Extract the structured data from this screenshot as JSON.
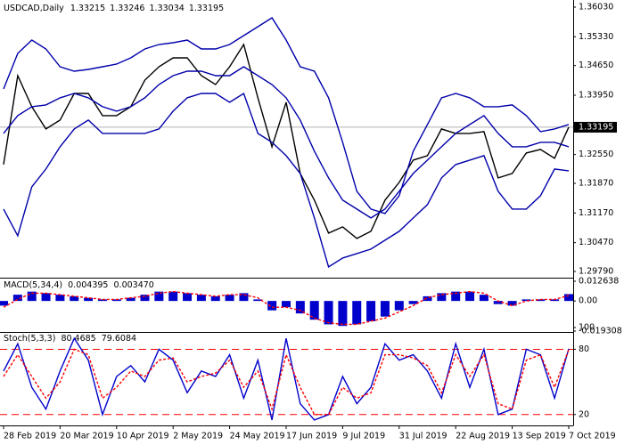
{
  "chart_data": [
    {
      "type": "line",
      "title": "USDCAD,Daily",
      "ohlc": [
        1.33215,
        1.33246,
        1.33034,
        1.33195
      ],
      "current_price": 1.33195,
      "ylim": [
        1.29643,
        1.36198
      ],
      "yticks": [
        {
          "value": 1.3603,
          "label": "1.36030"
        },
        {
          "value": 1.3533,
          "label": "1.35330"
        },
        {
          "value": 1.3465,
          "label": "1.34650"
        },
        {
          "value": 1.3395,
          "label": "1.33950"
        },
        {
          "value": 1.3255,
          "label": "1.32550"
        },
        {
          "value": 1.3187,
          "label": "1.31870"
        },
        {
          "value": 1.3117,
          "label": "1.31170"
        },
        {
          "value": 1.3047,
          "label": "1.30470"
        },
        {
          "value": 1.2979,
          "label": "1.29790"
        }
      ],
      "series": [
        {
          "color": "#000000",
          "values": [
            1.32313,
            1.34413,
            1.33678,
            1.33153,
            1.33363,
            1.33993,
            1.33993,
            1.33468,
            1.33468,
            1.33678,
            1.34308,
            1.34623,
            1.34833,
            1.34833,
            1.34413,
            1.34203,
            1.34623,
            1.35148,
            1.33888,
            1.32733,
            1.33783,
            1.32103,
            1.31473,
            1.30696,
            1.30843,
            1.3057,
            1.30738,
            1.31473,
            1.31893,
            1.32418,
            1.32523,
            1.33153,
            1.33048,
            1.33048,
            1.3309,
            1.31998,
            1.32103,
            1.32586,
            1.3267,
            1.3246,
            1.33195
          ]
        },
        {
          "color": "#0000aa",
          "values": [
            1.34098,
            1.34938,
            1.35253,
            1.35043,
            1.34623,
            1.34518,
            1.3456,
            1.34623,
            1.34686,
            1.34833,
            1.35043,
            1.35148,
            1.3519,
            1.35253,
            1.35043,
            1.35043,
            1.35148,
            1.35358,
            1.35568,
            1.35778,
            1.35253,
            1.34623,
            1.34518,
            1.33888,
            1.32838,
            1.31683,
            1.31263,
            1.31158,
            1.31578,
            1.32628,
            1.33258,
            1.33888,
            1.33993,
            1.33888,
            1.33678,
            1.33678,
            1.3372,
            1.33468,
            1.3309,
            1.33153,
            1.33258
          ]
        },
        {
          "color": "#0000aa",
          "values": [
            1.33048,
            1.33468,
            1.33678,
            1.3372,
            1.33888,
            1.33993,
            1.33888,
            1.33678,
            1.33573,
            1.33678,
            1.33888,
            1.34203,
            1.34413,
            1.34518,
            1.34518,
            1.34413,
            1.34413,
            1.34623,
            1.34413,
            1.34203,
            1.33888,
            1.33363,
            1.32628,
            1.31998,
            1.31473,
            1.31263,
            1.31053,
            1.31263,
            1.31683,
            1.32103,
            1.32418,
            1.32733,
            1.33048,
            1.33258,
            1.33468,
            1.33048,
            1.32733,
            1.32733,
            1.32838,
            1.32838,
            1.32733
          ]
        },
        {
          "color": "#0000aa",
          "values": [
            1.31263,
            1.30633,
            1.31788,
            1.32208,
            1.32733,
            1.33153,
            1.33363,
            1.33048,
            1.33048,
            1.33048,
            1.33048,
            1.33153,
            1.33573,
            1.33888,
            1.33993,
            1.33993,
            1.33783,
            1.33993,
            1.33048,
            1.32838,
            1.32523,
            1.32103,
            1.31053,
            1.29898,
            1.30108,
            1.30213,
            1.30318,
            1.30528,
            1.30738,
            1.31053,
            1.31368,
            1.31998,
            1.32313,
            1.32418,
            1.32523,
            1.31683,
            1.31263,
            1.31263,
            1.31578,
            1.32208,
            1.32166
          ]
        }
      ]
    },
    {
      "type": "bar",
      "title": "MACD(5,34,4)",
      "readout": [
        0.004395,
        {
          "value": 0.00347,
          "label": "0.003470"
        }
      ],
      "ylim": [
        -0.019308,
        0.012638
      ],
      "yticks": [
        0.012638,
        {
          "value": 0,
          "label": "0.00"
        },
        -0.019308
      ],
      "series": [
        {
          "color": "#0000cc",
          "values": [
            -0.003,
            0.004,
            0.006,
            0.005,
            0.004,
            0.003,
            0.002,
            0.001,
            0.001,
            0.002,
            0.004,
            0.006,
            0.006,
            0.005,
            0.004,
            0.003,
            0.004,
            0.005,
            0.001,
            -0.006,
            -0.004,
            -0.008,
            -0.012,
            -0.015,
            -0.016,
            -0.015,
            -0.013,
            -0.01,
            -0.006,
            -0.002,
            0.003,
            0.005,
            0.006,
            0.006,
            0.004,
            -0.002,
            -0.003,
            0.001,
            0.001,
            0.001,
            0.004395
          ]
        },
        {
          "color": "#ff0000",
          "values": [
            -0.004,
            0.001,
            0.005,
            0.005,
            0.004,
            0.003,
            0.002,
            0.001,
            0.001,
            0.002,
            0.003,
            0.005,
            0.006,
            0.005,
            0.004,
            0.003,
            0.004,
            0.004,
            0.002,
            -0.004,
            -0.004,
            -0.006,
            -0.011,
            -0.014,
            -0.015,
            -0.015,
            -0.013,
            -0.011,
            -0.007,
            -0.003,
            0.002,
            0.004,
            0.005,
            0.006,
            0.005,
            0.0,
            -0.003,
            0.0,
            0.001,
            0.001,
            0.00347
          ]
        }
      ]
    },
    {
      "type": "line",
      "title": "Stoch(5,3,3)",
      "readout": [
        80.4685,
        79.6084
      ],
      "ylim": [
        10,
        100
      ],
      "yticks": [
        100,
        80,
        20
      ],
      "levels": [
        80,
        20
      ],
      "level_color": "#ff0000",
      "categories": [
        "28 Feb 2019",
        null,
        null,
        null,
        "20 Mar 2019",
        null,
        null,
        null,
        "10 Apr 2019",
        null,
        null,
        null,
        "2 May 2019",
        null,
        null,
        null,
        "24 May 2019",
        null,
        null,
        null,
        "17 Jun 2019",
        null,
        null,
        null,
        "9 Jul 2019",
        null,
        null,
        null,
        "31 Jul 2019",
        null,
        null,
        null,
        "22 Aug 2019",
        null,
        null,
        null,
        "13 Sep 2019",
        null,
        null,
        null,
        "7 Oct 2019"
      ],
      "series": [
        {
          "color": "#0000cc",
          "values": [
            60,
            85,
            45,
            25,
            60,
            90,
            70,
            20,
            55,
            65,
            50,
            80,
            70,
            40,
            60,
            55,
            75,
            35,
            70,
            15,
            90,
            30,
            15,
            20,
            55,
            30,
            45,
            85,
            70,
            75,
            60,
            35,
            85,
            45,
            80,
            20,
            25,
            80,
            75,
            35,
            80.4685
          ]
        },
        {
          "color": "#ff0000",
          "values": [
            55,
            75,
            55,
            35,
            50,
            80,
            75,
            35,
            45,
            60,
            55,
            70,
            72,
            50,
            55,
            58,
            70,
            45,
            60,
            25,
            75,
            45,
            20,
            20,
            45,
            35,
            40,
            75,
            75,
            72,
            65,
            40,
            75,
            55,
            75,
            30,
            25,
            70,
            75,
            45,
            79.6084
          ]
        }
      ]
    }
  ]
}
